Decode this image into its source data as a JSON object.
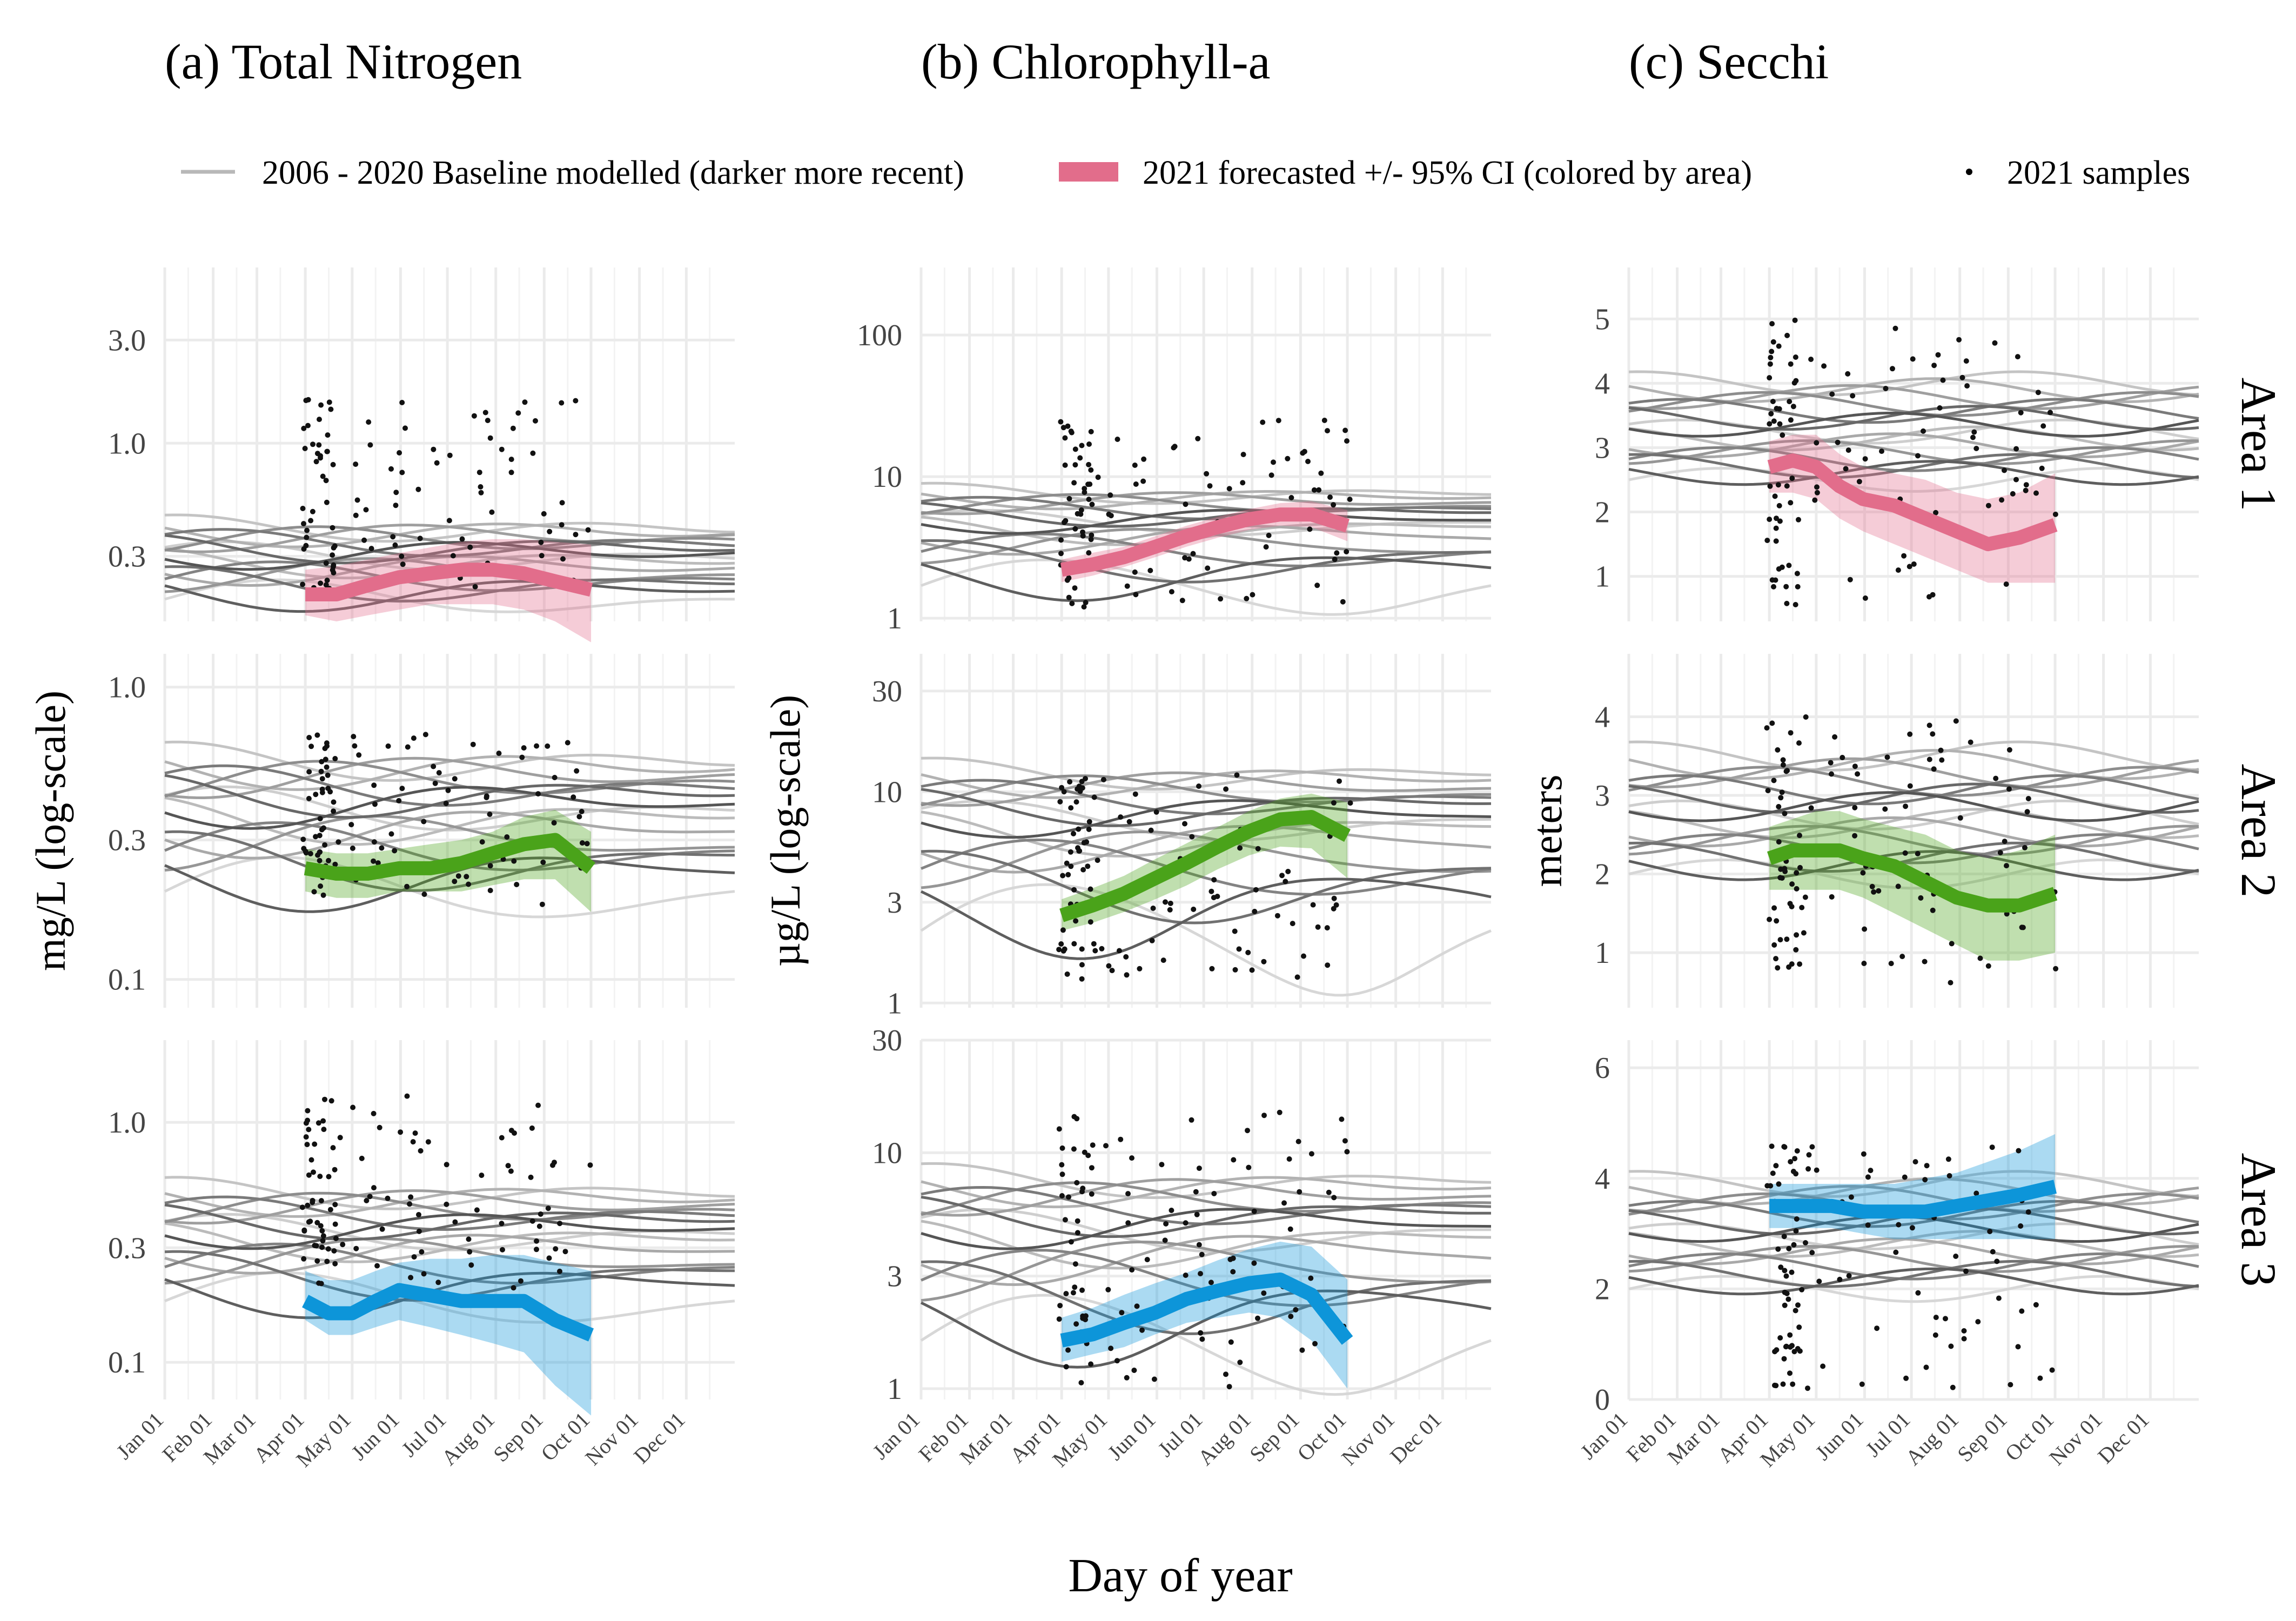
{
  "figure": {
    "x_axis_title": "Day of year",
    "months": [
      "Jan 01",
      "Feb 01",
      "Mar 01",
      "Apr 01",
      "May 01",
      "Jun 01",
      "Jul 01",
      "Aug 01",
      "Sep 01",
      "Oct 01",
      "Nov 01",
      "Dec 01"
    ],
    "areas": [
      "Area 1",
      "Area 2",
      "Area 3"
    ],
    "area_colors": [
      "#e26d8b",
      "#4aa31a",
      "#0d95d9"
    ],
    "baseline_color": "#555555"
  },
  "legend": {
    "baseline": "2006 - 2020 Baseline modelled (darker more recent)",
    "forecast": "2021 forecasted +/- 95% CI (colored by area)",
    "samples": "2021 samples"
  },
  "chart_data": [
    {
      "type": "line",
      "column": 0,
      "title": "(a) Total Nitrogen",
      "ylabel": "mg/L (log-scale)",
      "ylog": true,
      "panels": [
        {
          "area": "Area 1",
          "ylim": [
            0.15,
            6.5
          ],
          "yticks": [
            "3.0",
            "1.0",
            "0.3"
          ],
          "ytick_values": [
            3.0,
            1.0,
            0.3
          ],
          "baseline_min": 0.19,
          "baseline_max": 0.4,
          "forecast": {
            "x_days": [
              90,
              110,
              130,
              150,
              170,
              190,
              210,
              230,
              250,
              273
            ],
            "y": [
              0.2,
              0.2,
              0.22,
              0.24,
              0.25,
              0.26,
              0.26,
              0.25,
              0.23,
              0.21
            ],
            "lower": [
              0.16,
              0.15,
              0.16,
              0.17,
              0.18,
              0.18,
              0.18,
              0.17,
              0.15,
              0.12
            ],
            "upper": [
              0.26,
              0.27,
              0.29,
              0.31,
              0.33,
              0.35,
              0.36,
              0.36,
              0.35,
              0.34
            ]
          },
          "samples_range": [
            0.2,
            1.6
          ]
        },
        {
          "area": "Area 2",
          "ylim": [
            0.08,
            1.3
          ],
          "yticks": [
            "1.0",
            "0.3",
            "0.1"
          ],
          "ytick_values": [
            1.0,
            0.3,
            0.1
          ],
          "baseline_min": 0.2,
          "baseline_max": 0.55,
          "forecast": {
            "x_days": [
              90,
              110,
              130,
              150,
              170,
              190,
              210,
              230,
              250,
              273
            ],
            "y": [
              0.24,
              0.23,
              0.23,
              0.24,
              0.24,
              0.25,
              0.27,
              0.29,
              0.3,
              0.24
            ],
            "lower": [
              0.2,
              0.19,
              0.19,
              0.2,
              0.2,
              0.2,
              0.21,
              0.22,
              0.22,
              0.17
            ],
            "upper": [
              0.28,
              0.27,
              0.27,
              0.28,
              0.29,
              0.3,
              0.32,
              0.36,
              0.38,
              0.32
            ]
          },
          "samples_range": [
            0.18,
            0.7
          ]
        },
        {
          "area": "Area 3",
          "ylim": [
            0.07,
            2.2
          ],
          "yticks": [
            "1.0",
            "0.3",
            "0.1"
          ],
          "ytick_values": [
            1.0,
            0.3,
            0.1
          ],
          "baseline_min": 0.18,
          "baseline_max": 0.5,
          "forecast": {
            "x_days": [
              90,
              105,
              120,
              135,
              150,
              170,
              190,
              210,
              230,
              250,
              273
            ],
            "y": [
              0.18,
              0.16,
              0.16,
              0.18,
              0.2,
              0.19,
              0.18,
              0.18,
              0.18,
              0.15,
              0.13
            ],
            "lower": [
              0.15,
              0.13,
              0.13,
              0.14,
              0.15,
              0.14,
              0.13,
              0.12,
              0.11,
              0.08,
              0.06
            ],
            "upper": [
              0.24,
              0.22,
              0.22,
              0.24,
              0.26,
              0.27,
              0.27,
              0.28,
              0.28,
              0.26,
              0.24
            ]
          },
          "samples_range": [
            0.2,
            1.3
          ]
        }
      ]
    },
    {
      "type": "line",
      "column": 1,
      "title": "(b) Chlorophyll-a",
      "ylabel": "µg/L (log-scale)",
      "ylog": true,
      "panels": [
        {
          "area": "Area 1",
          "ylim": [
            0.95,
            300
          ],
          "yticks": [
            "100",
            "10",
            "1"
          ],
          "ytick_values": [
            100,
            10,
            1
          ],
          "baseline_min": 1.7,
          "baseline_max": 7.5,
          "forecast": {
            "x_days": [
              90,
              110,
              130,
              150,
              170,
              190,
              210,
              230,
              250,
              273
            ],
            "y": [
              2.2,
              2.4,
              2.7,
              3.2,
              3.8,
              4.4,
              5.0,
              5.4,
              5.4,
              4.5
            ],
            "lower": [
              1.8,
              2.0,
              2.3,
              2.7,
              3.2,
              3.7,
              4.2,
              4.5,
              4.4,
              3.5
            ],
            "upper": [
              2.6,
              2.9,
              3.2,
              3.8,
              4.5,
              5.2,
              5.9,
              6.5,
              6.7,
              5.8
            ]
          },
          "samples_range": [
            1.2,
            25
          ]
        },
        {
          "area": "Area 2",
          "ylim": [
            0.95,
            45
          ],
          "yticks": [
            "30",
            "10",
            "3",
            "1"
          ],
          "ytick_values": [
            30,
            10,
            3,
            1
          ],
          "baseline_min": 2.2,
          "baseline_max": 12,
          "forecast": {
            "x_days": [
              90,
              110,
              130,
              150,
              170,
              190,
              210,
              230,
              250,
              273
            ],
            "y": [
              2.6,
              2.9,
              3.3,
              3.9,
              4.6,
              5.5,
              6.5,
              7.4,
              7.6,
              6.2
            ],
            "lower": [
              2.2,
              2.4,
              2.7,
              3.1,
              3.6,
              4.3,
              5.0,
              5.5,
              5.4,
              3.9
            ],
            "upper": [
              3.1,
              3.5,
              4.0,
              4.8,
              5.7,
              6.8,
              8.1,
              9.3,
              9.8,
              8.9
            ]
          },
          "samples_range": [
            1.3,
            12
          ]
        },
        {
          "area": "Area 3",
          "ylim": [
            0.9,
            30
          ],
          "yticks": [
            "30",
            "10",
            "3",
            "1"
          ],
          "ytick_values": [
            30,
            10,
            3,
            1
          ],
          "baseline_min": 1.6,
          "baseline_max": 7.5,
          "forecast": {
            "x_days": [
              90,
              110,
              130,
              150,
              170,
              190,
              210,
              230,
              250,
              273
            ],
            "y": [
              1.6,
              1.7,
              1.9,
              2.1,
              2.4,
              2.6,
              2.8,
              2.9,
              2.5,
              1.6
            ],
            "lower": [
              1.3,
              1.4,
              1.5,
              1.7,
              1.9,
              2.0,
              2.1,
              2.0,
              1.6,
              1.0
            ],
            "upper": [
              2.0,
              2.2,
              2.5,
              2.8,
              3.1,
              3.5,
              3.9,
              4.2,
              4.0,
              2.9
            ]
          },
          "samples_range": [
            1.0,
            15
          ]
        }
      ]
    },
    {
      "type": "line",
      "column": 2,
      "title": "(c) Secchi",
      "ylabel": "meters",
      "ylog": false,
      "panels": [
        {
          "area": "Area 1",
          "ylim": [
            0.3,
            5.8
          ],
          "yticks": [
            "5",
            "4",
            "3",
            "2",
            "1"
          ],
          "ytick_values": [
            5,
            4,
            3,
            2,
            1
          ],
          "baseline_min": 2.5,
          "baseline_max": 4.0,
          "forecast": {
            "x_days": [
              90,
              105,
              120,
              135,
              150,
              170,
              190,
              210,
              230,
              250,
              273
            ],
            "y": [
              2.7,
              2.8,
              2.7,
              2.4,
              2.2,
              2.1,
              1.9,
              1.7,
              1.5,
              1.6,
              1.8
            ],
            "lower": [
              2.3,
              2.3,
              2.2,
              1.9,
              1.7,
              1.5,
              1.3,
              1.1,
              0.9,
              0.9,
              0.9
            ],
            "upper": [
              3.1,
              3.2,
              3.2,
              2.9,
              2.7,
              2.6,
              2.5,
              2.3,
              2.2,
              2.3,
              2.6
            ]
          },
          "samples_range": [
            0.5,
            5.0
          ]
        },
        {
          "area": "Area 2",
          "ylim": [
            0.3,
            4.8
          ],
          "yticks": [
            "4",
            "3",
            "2",
            "1"
          ],
          "ytick_values": [
            4,
            3,
            2,
            1
          ],
          "baseline_min": 2.0,
          "baseline_max": 3.5,
          "forecast": {
            "x_days": [
              90,
              105,
              120,
              135,
              150,
              170,
              190,
              210,
              230,
              250,
              273
            ],
            "y": [
              2.2,
              2.3,
              2.3,
              2.3,
              2.2,
              2.1,
              1.9,
              1.7,
              1.6,
              1.6,
              1.75
            ],
            "lower": [
              1.8,
              1.8,
              1.8,
              1.8,
              1.7,
              1.5,
              1.3,
              1.1,
              0.9,
              0.9,
              1.0
            ],
            "upper": [
              2.6,
              2.7,
              2.8,
              2.8,
              2.7,
              2.6,
              2.5,
              2.3,
              2.2,
              2.3,
              2.5
            ]
          },
          "samples_range": [
            0.6,
            4.0
          ]
        },
        {
          "area": "Area 3",
          "ylim": [
            0,
            6.5
          ],
          "yticks": [
            "6",
            "4",
            "2",
            "0"
          ],
          "ytick_values": [
            6,
            4,
            2,
            0
          ],
          "baseline_min": 2.0,
          "baseline_max": 3.9,
          "forecast": {
            "x_days": [
              90,
              110,
              130,
              150,
              170,
              190,
              210,
              230,
              250,
              273
            ],
            "y": [
              3.5,
              3.5,
              3.5,
              3.4,
              3.4,
              3.4,
              3.5,
              3.6,
              3.7,
              3.85
            ],
            "lower": [
              3.1,
              3.1,
              3.1,
              3.0,
              2.9,
              2.9,
              2.9,
              2.9,
              2.9,
              2.9
            ],
            "upper": [
              3.9,
              3.9,
              3.9,
              3.9,
              3.9,
              4.0,
              4.1,
              4.3,
              4.5,
              4.8
            ]
          },
          "samples_range": [
            0.2,
            4.6
          ]
        }
      ]
    }
  ]
}
